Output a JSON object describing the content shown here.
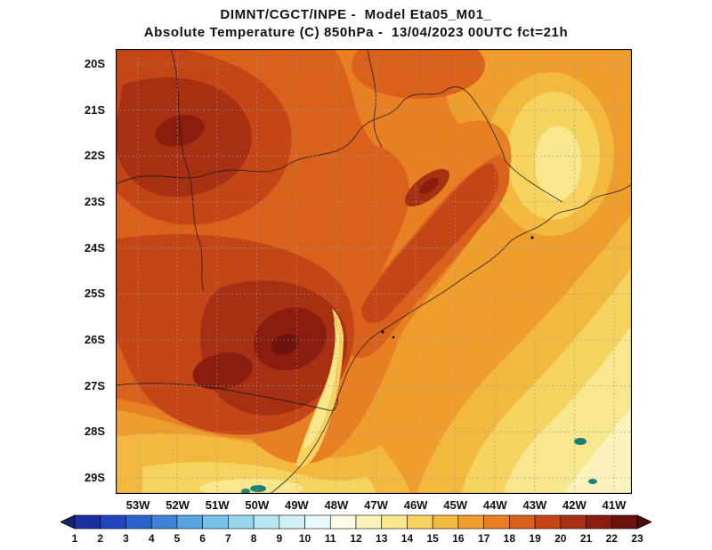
{
  "page": {
    "background": "#ffffff"
  },
  "header": {
    "line1": "DIMNT/CGCT/INPE -  Model Eta05_M01_",
    "line2": "Absolute Temperature (C) 850hPa -  13/04/2023 00UTC fct=21h"
  },
  "chart_data": {
    "type": "heatmap",
    "title": "DIMNT/CGCT/INPE -  Model Eta05_M01_",
    "subtitle": "Absolute Temperature (C) 850hPa -  13/04/2023 00UTC fct=21h",
    "source": "DIMNT/CGCT/INPE",
    "model": "Eta05_M01_",
    "variable": "Absolute Temperature",
    "units": "C",
    "pressure_level": "850hPa",
    "valid_time": "13/04/2023 00UTC",
    "forecast": "fct=21h",
    "lat_ticks": [
      "20S",
      "21S",
      "22S",
      "23S",
      "24S",
      "25S",
      "26S",
      "27S",
      "28S",
      "29S"
    ],
    "lon_ticks": [
      "53W",
      "52W",
      "51W",
      "50W",
      "49W",
      "48W",
      "47W",
      "46W",
      "45W",
      "44W",
      "43W",
      "42W",
      "41W"
    ],
    "grid": {
      "color": "#9a9a9a",
      "style": "dotted"
    },
    "speck_color": "#1d8076",
    "colorbar": {
      "labels": [
        1,
        2,
        3,
        4,
        5,
        6,
        7,
        8,
        9,
        10,
        11,
        12,
        13,
        14,
        15,
        16,
        17,
        18,
        19,
        20,
        21,
        22,
        23
      ],
      "colors": [
        "#16226d",
        "#1c2f9e",
        "#2344c0",
        "#2e63cf",
        "#3f83d9",
        "#58a5e0",
        "#77c0e8",
        "#98d6ee",
        "#b6e6f2",
        "#d2f1f6",
        "#e7f9fa",
        "#fefce8",
        "#fbf3bb",
        "#f8e78c",
        "#f6d35f",
        "#f3b93f",
        "#ef9d2d",
        "#e87f22",
        "#da611c",
        "#c44617",
        "#a72f12",
        "#8a1d0f",
        "#6d120d",
        "#4d0b0b"
      ]
    },
    "values_estimated": {
      "note": "Approx 850hPa temperature (C) read from shading; rows = lat 20S..29S, cols = lon 53W..41W",
      "grid": [
        [
          20,
          21,
          20,
          19,
          18,
          17,
          18,
          18,
          18,
          17,
          17,
          16,
          16
        ],
        [
          20,
          20,
          20,
          19,
          18,
          18,
          18,
          18,
          18,
          17,
          15,
          15,
          16
        ],
        [
          19,
          20,
          19,
          18,
          18,
          18,
          18,
          18,
          18,
          17,
          15,
          14,
          15
        ],
        [
          19,
          20,
          19,
          18,
          18,
          19,
          19,
          20,
          17,
          17,
          16,
          15,
          15
        ],
        [
          19,
          20,
          20,
          20,
          19,
          18,
          17,
          16,
          16,
          16,
          15,
          15,
          15
        ],
        [
          19,
          20,
          21,
          21,
          18,
          17,
          17,
          17,
          16,
          16,
          15,
          15,
          14
        ],
        [
          19,
          20,
          21,
          22,
          20,
          16,
          17,
          16,
          16,
          15,
          15,
          14,
          14
        ],
        [
          18,
          19,
          20,
          21,
          14,
          16,
          16,
          16,
          15,
          15,
          15,
          14,
          13
        ],
        [
          17,
          18,
          19,
          18,
          17,
          16,
          16,
          16,
          15,
          15,
          14,
          14,
          13
        ],
        [
          16,
          16,
          15,
          14,
          14,
          15,
          15,
          15,
          14,
          14,
          13,
          13,
          12
        ]
      ]
    }
  }
}
